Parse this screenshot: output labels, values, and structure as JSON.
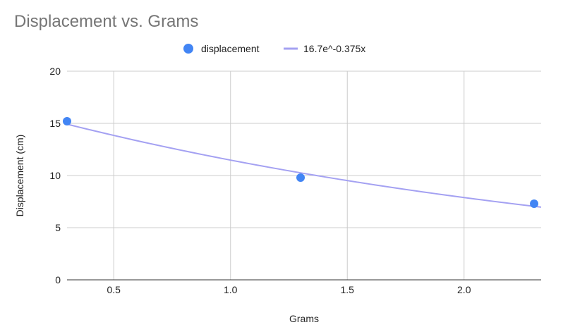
{
  "chart_data": {
    "type": "scatter",
    "title": "Displacement vs. Grams",
    "xlabel": "Grams",
    "ylabel": "Displacement (cm)",
    "xlim": [
      0.3,
      2.33
    ],
    "ylim": [
      0,
      20
    ],
    "x_ticks": [
      "0.5",
      "1.0",
      "1.5",
      "2.0"
    ],
    "x_tick_values": [
      0.5,
      1.0,
      1.5,
      2.0
    ],
    "y_ticks": [
      "0",
      "5",
      "10",
      "15",
      "20"
    ],
    "y_tick_values": [
      0,
      5,
      10,
      15,
      20
    ],
    "grid": true,
    "legend_position": "top",
    "series": [
      {
        "name": "displacement",
        "kind": "scatter",
        "color": "#4285f4",
        "points": [
          {
            "x": 0.3,
            "y": 15.2
          },
          {
            "x": 1.3,
            "y": 9.8
          },
          {
            "x": 2.3,
            "y": 7.3
          }
        ]
      },
      {
        "name": "16.7e^-0.375x",
        "kind": "trendline",
        "color": "#a4a1f2",
        "formula": {
          "a": 16.7,
          "b": -0.375
        }
      }
    ]
  }
}
